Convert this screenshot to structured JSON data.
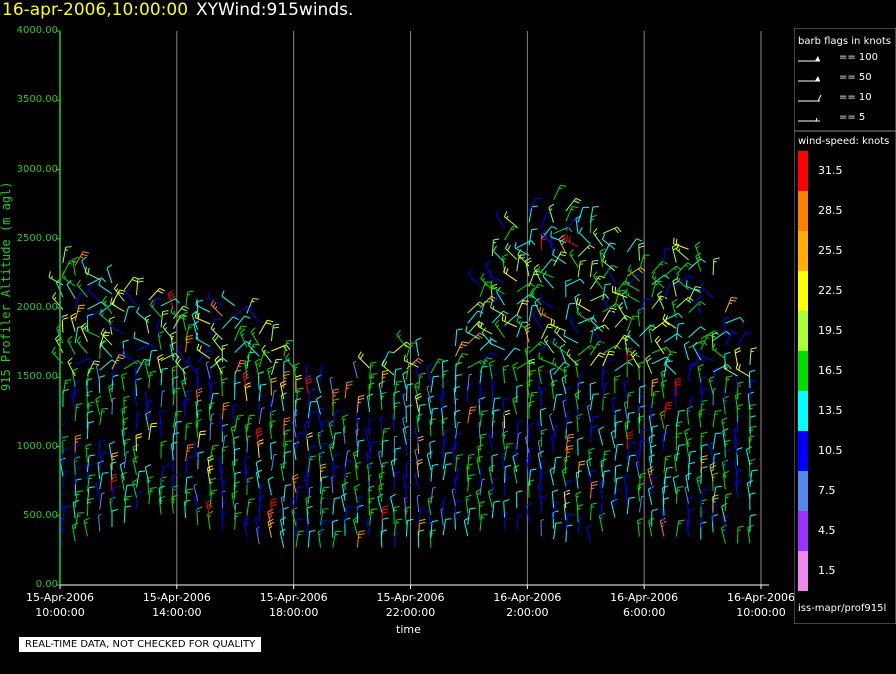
{
  "header": {
    "datetime": "16-apr-2006,10:00:00",
    "product": "XYWind:915winds."
  },
  "chart_data": {
    "type": "scatter",
    "title": "XYWind:915winds.",
    "xlabel": "time",
    "ylabel": "915 Profiler Altitude (m agl)",
    "ylim": [
      0,
      4000
    ],
    "xlim_hours": [
      0,
      24
    ],
    "yticks": [
      "0.00",
      "500.00",
      "1000.00",
      "1500.00",
      "2000.00",
      "2500.00",
      "3000.00",
      "3500.00",
      "4000.00"
    ],
    "xticks": [
      {
        "hour": 0,
        "line1": "15-Apr-2006",
        "line2": "10:00:00"
      },
      {
        "hour": 4,
        "line1": "15-Apr-2006",
        "line2": "14:00:00"
      },
      {
        "hour": 8,
        "line1": "15-Apr-2006",
        "line2": "18:00:00"
      },
      {
        "hour": 12,
        "line1": "15-Apr-2006",
        "line2": "22:00:00"
      },
      {
        "hour": 16,
        "line1": "16-Apr-2006",
        "line2": "2:00:00"
      },
      {
        "hour": 20,
        "line1": "16-Apr-2006",
        "line2": "6:00:00"
      },
      {
        "hour": 24,
        "line1": "16-Apr-2006",
        "line2": "10:00:00"
      }
    ],
    "grid": "vertical",
    "coverage": [
      {
        "hour": 0.0,
        "top": 2400,
        "bottom": 270
      },
      {
        "hour": 1.5,
        "top": 2200,
        "bottom": 400
      },
      {
        "hour": 3.0,
        "top": 2100,
        "bottom": 500
      },
      {
        "hour": 4.0,
        "top": 2050,
        "bottom": 520
      },
      {
        "hour": 5.0,
        "top": 2000,
        "bottom": 400
      },
      {
        "hour": 6.0,
        "top": 2100,
        "bottom": 400
      },
      {
        "hour": 7.0,
        "top": 1900,
        "bottom": 270
      },
      {
        "hour": 8.0,
        "top": 1600,
        "bottom": 270
      },
      {
        "hour": 9.5,
        "top": 1400,
        "bottom": 270
      },
      {
        "hour": 11.0,
        "top": 1700,
        "bottom": 270
      },
      {
        "hour": 12.0,
        "top": 1800,
        "bottom": 270
      },
      {
        "hour": 13.0,
        "top": 1500,
        "bottom": 270
      },
      {
        "hour": 14.5,
        "top": 2300,
        "bottom": 400
      },
      {
        "hour": 15.5,
        "top": 2700,
        "bottom": 400
      },
      {
        "hour": 16.5,
        "top": 2900,
        "bottom": 350
      },
      {
        "hour": 17.5,
        "top": 2700,
        "bottom": 300
      },
      {
        "hour": 18.5,
        "top": 2600,
        "bottom": 300
      },
      {
        "hour": 19.5,
        "top": 2400,
        "bottom": 350
      },
      {
        "hour": 20.5,
        "top": 2300,
        "bottom": 350
      },
      {
        "hour": 21.5,
        "top": 2500,
        "bottom": 350
      },
      {
        "hour": 22.5,
        "top": 2200,
        "bottom": 300
      },
      {
        "hour": 23.5,
        "top": 1600,
        "bottom": 300
      },
      {
        "hour": 24.0,
        "top": 1600,
        "bottom": 300
      }
    ],
    "legend": {
      "flags_title": "barb flags in knots",
      "flags": [
        {
          "label": "== 100",
          "kind": "pennant"
        },
        {
          "label": "== 50",
          "kind": "pennant"
        },
        {
          "label": "== 10",
          "kind": "full"
        },
        {
          "label": "== 5",
          "kind": "half"
        }
      ],
      "speed_title": "wind-speed: knots",
      "speeds": [
        {
          "label": "31.5",
          "color": "#ff0000"
        },
        {
          "label": "28.5",
          "color": "#ff8000"
        },
        {
          "label": "25.5",
          "color": "#ffb000"
        },
        {
          "label": "22.5",
          "color": "#ffff00"
        },
        {
          "label": "19.5",
          "color": "#aaff33"
        },
        {
          "label": "16.5",
          "color": "#00dd00"
        },
        {
          "label": "13.5",
          "color": "#00ffff"
        },
        {
          "label": "10.5",
          "color": "#0000ff"
        },
        {
          "label": "7.5",
          "color": "#5588ee"
        },
        {
          "label": "4.5",
          "color": "#9933ff"
        },
        {
          "label": "1.5",
          "color": "#ee88ee"
        }
      ]
    }
  },
  "footer": {
    "source": "iss-mapr/prof915l",
    "quality_notice": "REAL-TIME DATA, NOT CHECKED FOR QUALITY"
  }
}
